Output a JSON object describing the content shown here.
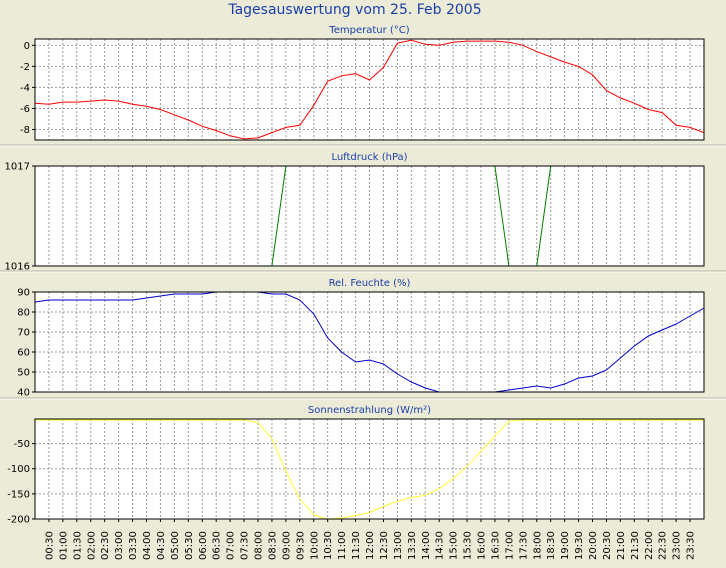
{
  "window": {
    "title": "Tagesauswertung vom 25. Feb 2005"
  },
  "time_labels": [
    "00:30",
    "01:00",
    "01:30",
    "02:00",
    "02:30",
    "03:00",
    "03:30",
    "04:00",
    "04:30",
    "05:00",
    "05:30",
    "06:00",
    "06:30",
    "07:00",
    "07:30",
    "08:00",
    "08:30",
    "09:00",
    "09:30",
    "10:00",
    "10:30",
    "11:00",
    "11:30",
    "12:00",
    "12:30",
    "13:00",
    "13:30",
    "14:00",
    "14:30",
    "15:00",
    "15:30",
    "16:00",
    "16:30",
    "17:00",
    "17:30",
    "18:00",
    "18:30",
    "19:00",
    "19:30",
    "20:00",
    "20:30",
    "21:00",
    "21:30",
    "22:00",
    "22:30",
    "23:00",
    "23:30"
  ],
  "colors": {
    "background": "#ecebd8",
    "plot_background": "#ffffff",
    "title": "#1a3fa8",
    "temperature": "#ff0000",
    "pressure": "#008000",
    "humidity": "#0000cc",
    "radiation": "#ffff33"
  },
  "chart_data": [
    {
      "type": "line",
      "title": "Temperatur (°C)",
      "series_color": "temperature",
      "ylim": [
        -9,
        0.6
      ],
      "yticks": [
        0,
        -2,
        -4,
        -6,
        -8
      ],
      "grid": true,
      "x": [
        "00:00",
        "00:30",
        "01:00",
        "01:30",
        "02:00",
        "02:30",
        "03:00",
        "03:30",
        "04:00",
        "04:30",
        "05:00",
        "05:30",
        "06:00",
        "06:30",
        "07:00",
        "07:30",
        "08:00",
        "08:30",
        "09:00",
        "09:30",
        "10:00",
        "10:30",
        "11:00",
        "11:30",
        "12:00",
        "12:30",
        "13:00",
        "13:30",
        "14:00",
        "14:30",
        "15:00",
        "15:30",
        "16:00",
        "16:30",
        "17:00",
        "17:30",
        "18:00",
        "18:30",
        "19:00",
        "19:30",
        "20:00",
        "20:30",
        "21:00",
        "21:30",
        "22:00",
        "22:30",
        "23:00",
        "23:30",
        "24:00"
      ],
      "values": [
        -5.5,
        -5.6,
        -5.4,
        -5.4,
        -5.3,
        -5.2,
        -5.3,
        -5.6,
        -5.8,
        -6.1,
        -6.6,
        -7.1,
        -7.7,
        -8.1,
        -8.6,
        -8.9,
        -8.8,
        -8.3,
        -7.8,
        -7.6,
        -5.7,
        -3.4,
        -2.9,
        -2.7,
        -3.3,
        -2.1,
        0.2,
        0.5,
        0.1,
        0.0,
        0.3,
        0.4,
        0.4,
        0.4,
        0.3,
        0.0,
        -0.6,
        -1.1,
        -1.6,
        -2.0,
        -2.8,
        -4.3,
        -5.0,
        -5.5,
        -6.1,
        -6.4,
        -7.6,
        -7.8,
        -8.3
      ]
    },
    {
      "type": "line",
      "title": "Luftdruck (hPa)",
      "series_color": "pressure",
      "ylim": [
        1016,
        1017
      ],
      "yticks": [
        1017,
        1016
      ],
      "grid": true,
      "segments": [
        {
          "x": [
            "08:30",
            "09:00"
          ],
          "values": [
            1016,
            1017
          ]
        },
        {
          "x": [
            "16:30",
            "17:00"
          ],
          "values": [
            1017,
            1016
          ]
        },
        {
          "x": [
            "18:00",
            "18:30"
          ],
          "values": [
            1016,
            1017
          ]
        }
      ]
    },
    {
      "type": "line",
      "title": "Rel. Feuchte (%)",
      "series_color": "humidity",
      "ylim": [
        40,
        90
      ],
      "yticks": [
        90,
        80,
        70,
        60,
        50,
        40
      ],
      "grid": true,
      "x": [
        "00:00",
        "00:30",
        "01:00",
        "01:30",
        "02:00",
        "02:30",
        "03:00",
        "03:30",
        "04:00",
        "04:30",
        "05:00",
        "05:30",
        "06:00",
        "06:30",
        "07:00",
        "07:30",
        "08:00",
        "08:30",
        "09:00",
        "09:30",
        "10:00",
        "10:30",
        "11:00",
        "11:30",
        "12:00",
        "12:30",
        "13:00",
        "13:30",
        "14:00",
        "14:30",
        "15:00",
        "15:30",
        "16:00",
        "16:30",
        "17:00",
        "17:30",
        "18:00",
        "18:30",
        "19:00",
        "19:30",
        "20:00",
        "20:30",
        "21:00",
        "21:30",
        "22:00",
        "22:30",
        "23:00",
        "23:30",
        "24:00"
      ],
      "values": [
        85,
        86,
        86,
        86,
        86,
        86,
        86,
        86,
        87,
        88,
        89,
        89,
        89,
        90,
        90,
        90,
        90,
        89,
        89,
        86,
        79,
        67,
        60,
        55,
        56,
        54,
        49,
        45,
        42,
        40,
        40,
        40,
        40,
        40,
        41,
        42,
        43,
        42,
        44,
        47,
        48,
        51,
        57,
        63,
        68,
        71,
        74,
        78,
        82
      ]
    },
    {
      "type": "line",
      "title": "Sonnenstrahlung (W/m²)",
      "series_color": "radiation",
      "ylim": [
        -200,
        -1
      ],
      "yticks": [
        -50,
        -100,
        -150,
        -200
      ],
      "grid": true,
      "x": [
        "00:00",
        "00:30",
        "01:00",
        "01:30",
        "02:00",
        "02:30",
        "03:00",
        "03:30",
        "04:00",
        "04:30",
        "05:00",
        "05:30",
        "06:00",
        "06:30",
        "07:00",
        "07:30",
        "08:00",
        "08:30",
        "09:00",
        "09:30",
        "10:00",
        "10:30",
        "11:00",
        "11:30",
        "12:00",
        "12:30",
        "13:00",
        "13:30",
        "14:00",
        "14:30",
        "15:00",
        "15:30",
        "16:00",
        "16:30",
        "17:00",
        "17:30",
        "18:00",
        "18:30",
        "19:00",
        "19:30",
        "20:00",
        "20:30",
        "21:00",
        "21:30",
        "22:00",
        "22:30",
        "23:00",
        "23:30",
        "24:00"
      ],
      "values": [
        -3,
        -3,
        -3,
        -3,
        -3,
        -3,
        -3,
        -3,
        -3,
        -3,
        -3,
        -3,
        -3,
        -3,
        -3,
        -3,
        -8,
        -40,
        -105,
        -160,
        -192,
        -200,
        -198,
        -193,
        -187,
        -175,
        -165,
        -157,
        -153,
        -140,
        -120,
        -95,
        -65,
        -35,
        -5,
        -3,
        -3,
        -3,
        -3,
        -3,
        -3,
        -3,
        -3,
        -3,
        -3,
        -3,
        -3,
        -3,
        -3
      ]
    }
  ]
}
